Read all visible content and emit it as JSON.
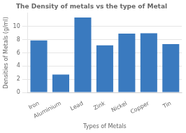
{
  "chart_data": {
    "type": "bar",
    "title": "The Density of metals vs the type of Metal",
    "xlabel": "Types of Metals",
    "ylabel": "Densities of Metals (g/ml)",
    "categories": [
      "Iron",
      "Aluminium",
      "Lead",
      "Zink",
      "Nickel",
      "Copper",
      "Tin"
    ],
    "values": [
      7.87,
      2.7,
      11.34,
      7.13,
      8.9,
      8.96,
      7.31
    ],
    "color": "#3a7abf",
    "ylim": [
      0,
      12
    ],
    "yticks": [
      0,
      2,
      4,
      6,
      8,
      10
    ],
    "grid": true
  }
}
